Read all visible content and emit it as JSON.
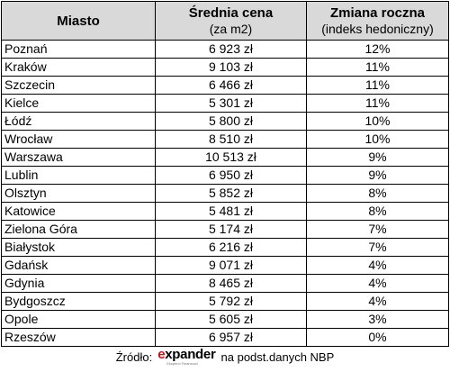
{
  "table": {
    "headers": {
      "city": "Miasto",
      "price_main": "Średnia cena",
      "price_sub": "(za m2)",
      "change_main": "Zmiana roczna",
      "change_sub": "(indeks hedoniczny)"
    },
    "rows": [
      {
        "city": "Poznań",
        "price": "6 923 zł",
        "change": "12%"
      },
      {
        "city": "Kraków",
        "price": "9 103 zł",
        "change": "11%"
      },
      {
        "city": "Szczecin",
        "price": "6 466 zł",
        "change": "11%"
      },
      {
        "city": "Kielce",
        "price": "5 301 zł",
        "change": "11%"
      },
      {
        "city": "Łódź",
        "price": "5 800 zł",
        "change": "10%"
      },
      {
        "city": "Wrocław",
        "price": "8 510 zł",
        "change": "10%"
      },
      {
        "city": "Warszawa",
        "price": "10 513 zł",
        "change": "9%"
      },
      {
        "city": "Lublin",
        "price": "6 950 zł",
        "change": "9%"
      },
      {
        "city": "Olsztyn",
        "price": "5 852 zł",
        "change": "8%"
      },
      {
        "city": "Katowice",
        "price": "5 481 zł",
        "change": "8%"
      },
      {
        "city": "Zielona Góra",
        "price": "5 174 zł",
        "change": "7%"
      },
      {
        "city": "Białystok",
        "price": "6 216 zł",
        "change": "7%"
      },
      {
        "city": "Gdańsk",
        "price": "9 071 zł",
        "change": "4%"
      },
      {
        "city": "Gdynia",
        "price": "8 465 zł",
        "change": "4%"
      },
      {
        "city": "Bydgoszcz",
        "price": "5 792 zł",
        "change": "4%"
      },
      {
        "city": "Opole",
        "price": "5 605 zł",
        "change": "3%"
      },
      {
        "city": "Rzeszów",
        "price": "6 957 zł",
        "change": "0%"
      }
    ]
  },
  "footer": {
    "source_label": "Źródło:",
    "logo_e": "e",
    "logo_rest": "xpander",
    "logo_tagline": "Eksperci Finansowi",
    "suffix": "na podst.danych NBP"
  },
  "colors": {
    "header_bg": "#d9d9d9",
    "border": "#000000",
    "logo_accent": "#e30613"
  }
}
